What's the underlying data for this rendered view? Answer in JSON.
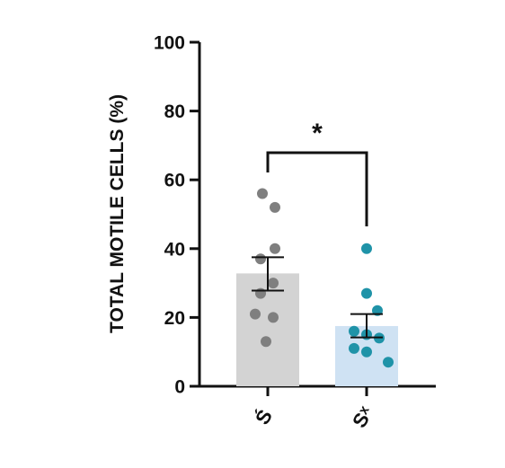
{
  "chart_data": {
    "type": "bar",
    "ylabel": "TOTAL MOTILE CELLS (%)",
    "ylim": [
      0,
      100
    ],
    "yticks": [
      0,
      20,
      40,
      60,
      80,
      100
    ],
    "grid": false,
    "categories": [
      "Ś",
      "Sˣ"
    ],
    "bars": [
      {
        "category": "Ś",
        "mean": 32.8,
        "sem_low": 27.8,
        "sem_high": 37.5,
        "points": [
          56,
          52,
          40,
          37,
          30,
          27,
          21,
          20,
          13
        ],
        "bar_color": "#d3d3d3",
        "point_color": "#7f7f7f"
      },
      {
        "category": "Sˣ",
        "mean": 17.5,
        "sem_low": 14.2,
        "sem_high": 21.0,
        "points": [
          40,
          27,
          22,
          16,
          15,
          14,
          11,
          10,
          7
        ],
        "bar_color": "#cfe2f3",
        "point_color": "#1f93a8"
      }
    ],
    "significance": {
      "label": "*",
      "from": 0,
      "to": 1
    }
  }
}
